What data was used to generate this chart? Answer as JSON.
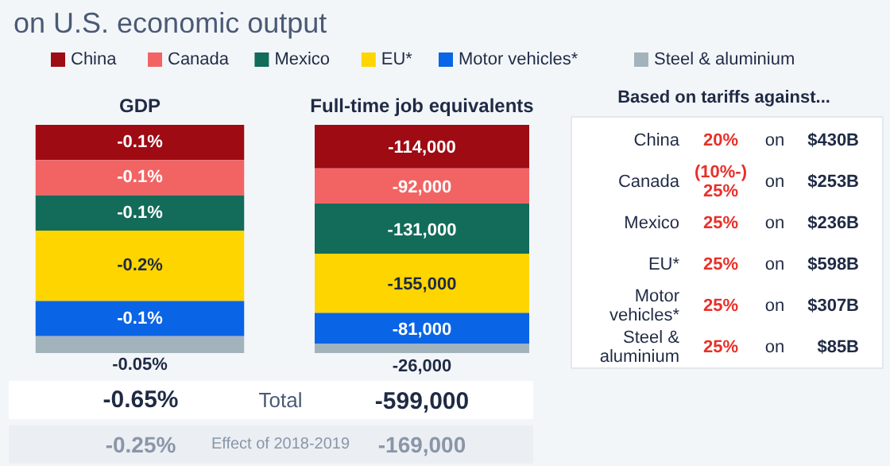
{
  "chart_data": [
    {
      "type": "bar",
      "stacked": true,
      "title": "on U.S. economic output",
      "subtitle": "GDP",
      "categories": [
        null
      ],
      "ylim": [
        -0.65,
        0
      ],
      "tick_labels": false,
      "legend": "top",
      "series": [
        {
          "name": "China",
          "color": "#9e0b13",
          "values": [
            -0.1
          ],
          "value_labels": [
            "-0.1%"
          ]
        },
        {
          "name": "Canada",
          "color": "#f26464",
          "values": [
            -0.1
          ],
          "value_labels": [
            "-0.1%"
          ]
        },
        {
          "name": "Mexico",
          "color": "#136b5a",
          "values": [
            -0.1
          ],
          "value_labels": [
            "-0.1%"
          ]
        },
        {
          "name": "EU*",
          "color": "#ffd500",
          "values": [
            -0.2
          ],
          "value_labels": [
            "-0.2%"
          ]
        },
        {
          "name": "Motor vehicles*",
          "color": "#0a64e6",
          "values": [
            -0.1
          ],
          "value_labels": [
            "-0.1%"
          ]
        },
        {
          "name": "Steel & aluminium",
          "color": "#a3b3bc",
          "values": [
            -0.05
          ],
          "value_labels": [
            "-0.05%"
          ]
        }
      ],
      "totals": [
        "-0.65%"
      ],
      "annotations": [
        "Total",
        "Effect of 2018-2019",
        "-0.25%"
      ]
    },
    {
      "type": "bar",
      "stacked": true,
      "title": "Full-time job equivalents",
      "categories": [
        null
      ],
      "ylim": [
        -599000,
        0
      ],
      "tick_labels": false,
      "series": [
        {
          "color": "#9e0b13",
          "values": [
            -114000
          ],
          "value_labels": [
            "-114,000"
          ]
        },
        {
          "color": "#f26464",
          "values": [
            -92000
          ],
          "value_labels": [
            "-92,000"
          ]
        },
        {
          "color": "#136b5a",
          "values": [
            -131000
          ],
          "value_labels": [
            "-131,000"
          ]
        },
        {
          "color": "#ffd500",
          "values": [
            -155000
          ],
          "value_labels": [
            "-155,000"
          ]
        },
        {
          "color": "#0a64e6",
          "values": [
            -81000
          ],
          "value_labels": [
            "-81,000"
          ]
        },
        {
          "color": "#a3b3bc",
          "values": [
            -26000
          ],
          "value_labels": [
            "-26,000"
          ]
        }
      ],
      "totals": [
        "-599,000"
      ],
      "annotations": [
        "-169,000"
      ]
    },
    {
      "type": "other",
      "title": "Based on tariffs against...",
      "annotations": [
        "China",
        "20%",
        "on",
        "$430B",
        "Canada",
        "(10%-)\n25%",
        "on",
        "$253B",
        "Mexico",
        "25%",
        "on",
        "$236B",
        "EU*",
        "25%",
        "on",
        "$598B",
        "Motor\nvehicles*",
        "25%",
        "on",
        "$307B",
        "Steel &\naluminium",
        "25%",
        "on",
        "$85B"
      ]
    }
  ]
}
